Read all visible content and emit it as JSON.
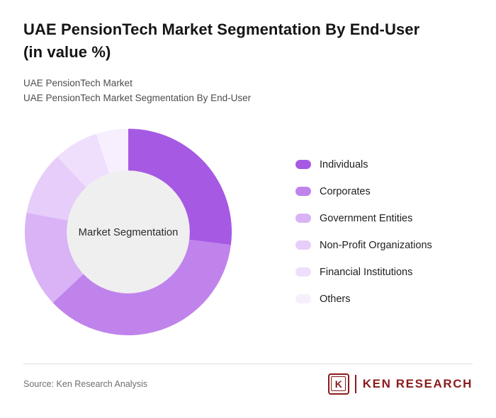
{
  "header": {
    "title": "UAE PensionTech Market Segmentation By End-User\n(in value %)",
    "subtitle_line1": "UAE PensionTech Market",
    "subtitle_line2": "UAE PensionTech Market Segmentation By End-User"
  },
  "chart_data": {
    "type": "pie",
    "variant": "donut",
    "title": "UAE PensionTech Market Segmentation By End-User (in value %)",
    "center_label": "Market Segmentation",
    "legend_position": "right",
    "inner_circle_color": "#efefef",
    "start_angle_deg": 0,
    "segments": [
      {
        "label": "Individuals",
        "value": 27,
        "color": "#a659e2"
      },
      {
        "label": "Corporates",
        "value": 36,
        "color": "#c083ec"
      },
      {
        "label": "Government Entities",
        "value": 15,
        "color": "#d9b3f5"
      },
      {
        "label": "Non-Profit Organizations",
        "value": 10,
        "color": "#e6cdfa"
      },
      {
        "label": "Financial Institutions",
        "value": 7,
        "color": "#efdffc"
      },
      {
        "label": "Others",
        "value": 5,
        "color": "#f7effe"
      }
    ]
  },
  "footer": {
    "source": "Source: Ken Research Analysis",
    "logo": {
      "icon_letter": "K",
      "brand": "KEN RESEARCH",
      "color": "#8a1b1b"
    }
  }
}
